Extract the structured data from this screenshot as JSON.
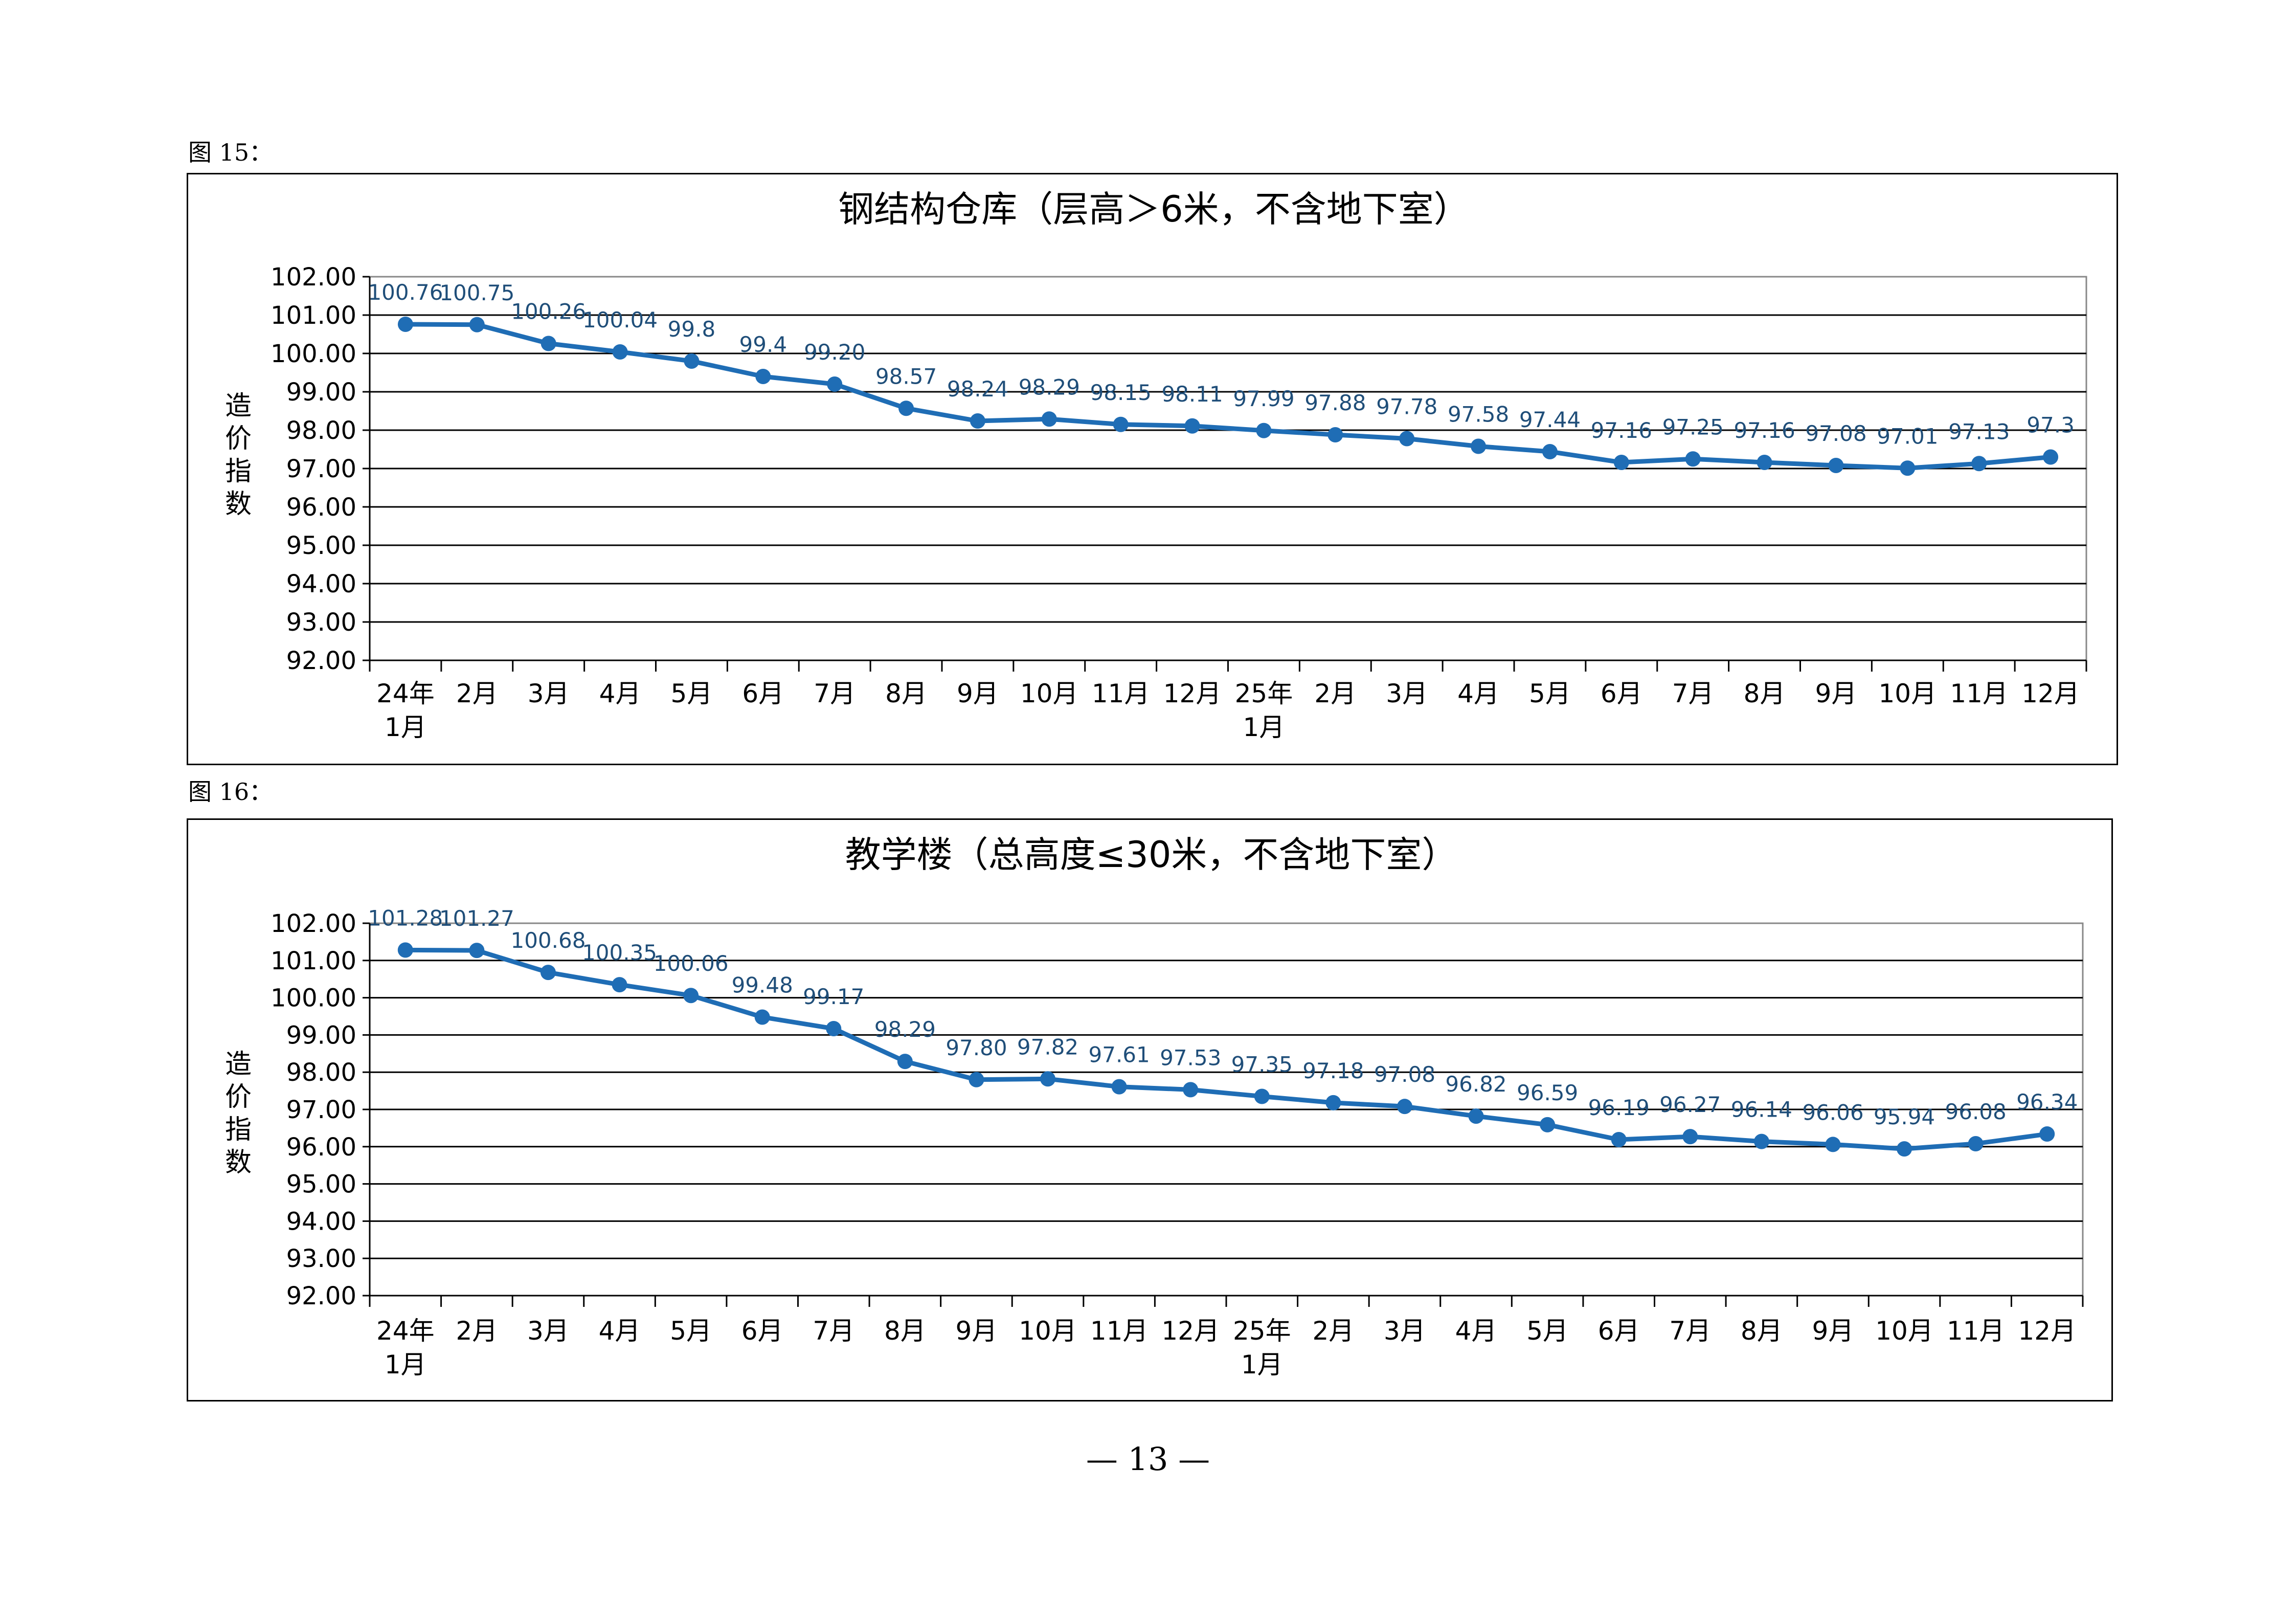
{
  "page_number": "— 13 —",
  "figures": [
    {
      "caption": "图 15："
    },
    {
      "caption": "图 16："
    }
  ],
  "chart_data": [
    {
      "type": "line",
      "title": "钢结构仓库（层高＞6米，不含地下室）",
      "ylabel": "造价指数",
      "xlabel": "",
      "ylim": [
        92,
        102
      ],
      "yticks": [
        "102.00",
        "101.00",
        "100.00",
        "99.00",
        "98.00",
        "97.00",
        "96.00",
        "95.00",
        "94.00",
        "93.00",
        "92.00"
      ],
      "grid": true,
      "line_color": "#1f6db5",
      "label_color": "#1f4e79",
      "categories": [
        [
          "24年",
          "1月"
        ],
        [
          "2月"
        ],
        [
          "3月"
        ],
        [
          "4月"
        ],
        [
          "5月"
        ],
        [
          "6月"
        ],
        [
          "7月"
        ],
        [
          "8月"
        ],
        [
          "9月"
        ],
        [
          "10月"
        ],
        [
          "11月"
        ],
        [
          "12月"
        ],
        [
          "25年",
          "1月"
        ],
        [
          "2月"
        ],
        [
          "3月"
        ],
        [
          "4月"
        ],
        [
          "5月"
        ],
        [
          "6月"
        ],
        [
          "7月"
        ],
        [
          "8月"
        ],
        [
          "9月"
        ],
        [
          "10月"
        ],
        [
          "11月"
        ],
        [
          "12月"
        ]
      ],
      "values": [
        100.76,
        100.75,
        100.26,
        100.04,
        99.8,
        99.4,
        99.2,
        98.57,
        98.24,
        98.29,
        98.15,
        98.11,
        97.99,
        97.88,
        97.78,
        97.58,
        97.44,
        97.16,
        97.25,
        97.16,
        97.08,
        97.01,
        97.13,
        97.3
      ],
      "data_labels": [
        "100.76",
        "100.75",
        "100.26",
        "100.04",
        "99.8",
        "99.4",
        "99.20",
        "98.57",
        "98.24",
        "98.29",
        "98.15",
        "98.11",
        "97.99",
        "97.88",
        "97.78",
        "97.58",
        "97.44",
        "97.16",
        "97.25",
        "97.16",
        "97.08",
        "97.01",
        "97.13",
        "97.3"
      ]
    },
    {
      "type": "line",
      "title": "教学楼（总高度≤30米，不含地下室）",
      "ylabel": "造价指数",
      "xlabel": "",
      "ylim": [
        92,
        102
      ],
      "yticks": [
        "102.00",
        "101.00",
        "100.00",
        "99.00",
        "98.00",
        "97.00",
        "96.00",
        "95.00",
        "94.00",
        "93.00",
        "92.00"
      ],
      "grid": true,
      "line_color": "#1f6db5",
      "label_color": "#1f4e79",
      "categories": [
        [
          "24年",
          "1月"
        ],
        [
          "2月"
        ],
        [
          "3月"
        ],
        [
          "4月"
        ],
        [
          "5月"
        ],
        [
          "6月"
        ],
        [
          "7月"
        ],
        [
          "8月"
        ],
        [
          "9月"
        ],
        [
          "10月"
        ],
        [
          "11月"
        ],
        [
          "12月"
        ],
        [
          "25年",
          "1月"
        ],
        [
          "2月"
        ],
        [
          "3月"
        ],
        [
          "4月"
        ],
        [
          "5月"
        ],
        [
          "6月"
        ],
        [
          "7月"
        ],
        [
          "8月"
        ],
        [
          "9月"
        ],
        [
          "10月"
        ],
        [
          "11月"
        ],
        [
          "12月"
        ]
      ],
      "values": [
        101.28,
        101.27,
        100.68,
        100.35,
        100.06,
        99.48,
        99.17,
        98.29,
        97.8,
        97.82,
        97.61,
        97.53,
        97.35,
        97.18,
        97.08,
        96.82,
        96.59,
        96.19,
        96.27,
        96.14,
        96.06,
        95.94,
        96.08,
        96.34
      ],
      "data_labels": [
        "101.28",
        "101.27",
        "100.68",
        "100.35",
        "100.06",
        "99.48",
        "99.17",
        "98.29",
        "97.80",
        "97.82",
        "97.61",
        "97.53",
        "97.35",
        "97.18",
        "97.08",
        "96.82",
        "96.59",
        "96.19",
        "96.27",
        "96.14",
        "96.06",
        "95.94",
        "96.08",
        "96.34"
      ]
    }
  ]
}
